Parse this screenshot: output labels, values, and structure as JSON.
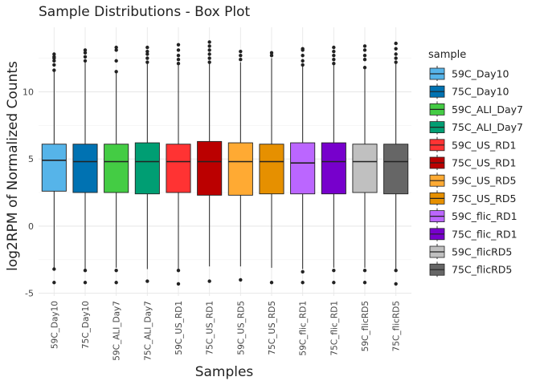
{
  "chart_data": {
    "type": "box",
    "title": "Sample Distributions - Box Plot",
    "xlabel": "Samples",
    "ylabel": "log2RPM of Normalized Counts",
    "ylim": [
      -5.2,
      14.8
    ],
    "yticks": [
      -5,
      0,
      5,
      10
    ],
    "grid": true,
    "legend": {
      "title": "sample",
      "position": "right"
    },
    "series": [
      {
        "name": "59C_Day10",
        "color": "#56B4E9",
        "q1": 2.6,
        "median": 4.9,
        "q3": 6.1,
        "whisker_low": -3.1,
        "whisker_high": 11.7,
        "outliers": [
          -3.2,
          -4.2,
          11.6,
          12.0,
          12.3,
          12.5,
          12.6,
          12.8
        ]
      },
      {
        "name": "75C_Day10",
        "color": "#0072B2",
        "q1": 2.5,
        "median": 4.8,
        "q3": 6.1,
        "whisker_low": -3.2,
        "whisker_high": 12.2,
        "outliers": [
          -3.3,
          -4.2,
          12.3,
          12.6,
          12.9,
          13.1
        ]
      },
      {
        "name": "59C_ALI_Day7",
        "color": "#44CC44",
        "q1": 2.5,
        "median": 4.8,
        "q3": 6.1,
        "whisker_low": -3.1,
        "whisker_high": 11.4,
        "outliers": [
          -3.3,
          -4.2,
          11.5,
          12.3,
          13.1,
          13.3
        ]
      },
      {
        "name": "75C_ALI_Day7",
        "color": "#009E73",
        "q1": 2.4,
        "median": 4.8,
        "q3": 6.2,
        "whisker_low": -3.2,
        "whisker_high": 12.1,
        "outliers": [
          -4.1,
          12.2,
          12.5,
          12.8,
          13.0,
          13.3
        ]
      },
      {
        "name": "59C_US_RD1",
        "color": "#FF3333",
        "q1": 2.5,
        "median": 4.8,
        "q3": 6.1,
        "whisker_low": -3.2,
        "whisker_high": 12.0,
        "outliers": [
          -3.3,
          -4.3,
          12.1,
          12.4,
          12.7,
          13.1,
          13.5
        ]
      },
      {
        "name": "75C_US_RD1",
        "color": "#BB0000",
        "q1": 2.3,
        "median": 4.8,
        "q3": 6.3,
        "whisker_low": -3.0,
        "whisker_high": 12.1,
        "outliers": [
          -4.1,
          12.2,
          12.5,
          12.8,
          13.1,
          13.4,
          13.7
        ]
      },
      {
        "name": "59C_US_RD5",
        "color": "#FFAA33",
        "q1": 2.3,
        "median": 4.8,
        "q3": 6.2,
        "whisker_low": -3.0,
        "whisker_high": 12.2,
        "outliers": [
          -4.0,
          12.4,
          12.7,
          13.0
        ]
      },
      {
        "name": "75C_US_RD5",
        "color": "#E69000",
        "q1": 2.4,
        "median": 4.8,
        "q3": 6.1,
        "whisker_low": -3.1,
        "whisker_high": 12.5,
        "outliers": [
          -4.2,
          12.7,
          12.9
        ]
      },
      {
        "name": "59C_flic_RD1",
        "color": "#BB66FF",
        "q1": 2.4,
        "median": 4.7,
        "q3": 6.2,
        "whisker_low": -3.2,
        "whisker_high": 11.9,
        "outliers": [
          -3.4,
          -4.2,
          12.0,
          12.3,
          12.7,
          13.1,
          13.2
        ]
      },
      {
        "name": "75C_flic_RD1",
        "color": "#7700CC",
        "q1": 2.4,
        "median": 4.8,
        "q3": 6.2,
        "whisker_low": -3.1,
        "whisker_high": 12.0,
        "outliers": [
          -3.3,
          -4.2,
          12.1,
          12.4,
          12.7,
          13.0,
          13.3
        ]
      },
      {
        "name": "59C_flicRD5",
        "color": "#C0C0C0",
        "q1": 2.5,
        "median": 4.8,
        "q3": 6.1,
        "whisker_low": -3.1,
        "whisker_high": 11.7,
        "outliers": [
          -3.3,
          -4.2,
          11.8,
          12.4,
          12.7,
          13.1,
          13.4
        ]
      },
      {
        "name": "75C_flicRD5",
        "color": "#666666",
        "q1": 2.4,
        "median": 4.8,
        "q3": 6.1,
        "whisker_low": -3.2,
        "whisker_high": 12.1,
        "outliers": [
          -3.3,
          -4.3,
          12.2,
          12.5,
          12.8,
          13.2,
          13.6
        ]
      }
    ]
  }
}
